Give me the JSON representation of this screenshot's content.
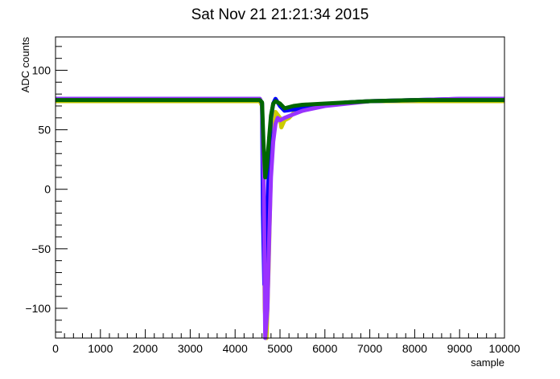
{
  "chart_data": {
    "type": "line",
    "title": "Sat Nov 21 21:21:34 2015",
    "xlabel": "sample",
    "ylabel": "ADC counts",
    "xlim": [
      0,
      10000
    ],
    "ylim": [
      -125,
      128
    ],
    "xticks": [
      0,
      1000,
      2000,
      3000,
      4000,
      5000,
      6000,
      7000,
      8000,
      9000,
      10000
    ],
    "yticks": [
      -100,
      -50,
      0,
      50,
      100
    ],
    "grid": false,
    "legend": "none",
    "series": [
      {
        "color": "#cccc00",
        "x": [
          0,
          4550,
          4600,
          4630,
          4660,
          4700,
          4750,
          4800,
          4850,
          4900,
          5000,
          5030,
          5100,
          5200,
          5300,
          5500,
          5700,
          6000,
          6500,
          7000,
          8000,
          9000,
          10000
        ],
        "y": [
          74,
          74,
          70,
          20,
          -100,
          -125,
          -60,
          20,
          55,
          65,
          60,
          52,
          58,
          60,
          64,
          66,
          68,
          71,
          73,
          74,
          74,
          74,
          74
        ]
      },
      {
        "color": "#0000ff",
        "x": [
          0,
          4550,
          4600,
          4620,
          4650,
          4680,
          4720,
          4760,
          4800,
          4850,
          4900,
          5000,
          5100,
          5300,
          5500,
          6000,
          6500,
          7000,
          8000,
          9000,
          10000
        ],
        "y": [
          76,
          76,
          72,
          -20,
          -80,
          -60,
          -20,
          30,
          60,
          72,
          76,
          70,
          66,
          67,
          68,
          71,
          73,
          74,
          75,
          76,
          76
        ]
      },
      {
        "color": "#9933ff",
        "x": [
          0,
          4550,
          4600,
          4640,
          4670,
          4720,
          4760,
          4800,
          4850,
          4900,
          4950,
          5000,
          5100,
          5300,
          5500,
          6000,
          6500,
          7000,
          8000,
          9000,
          10000
        ],
        "y": [
          76,
          76,
          72,
          0,
          -125,
          -100,
          -40,
          10,
          40,
          55,
          60,
          58,
          60,
          63,
          66,
          70,
          72,
          74,
          75,
          76,
          76
        ]
      },
      {
        "color": "#006600",
        "x": [
          0,
          4550,
          4600,
          4630,
          4670,
          4710,
          4750,
          4800,
          4850,
          4900,
          5000,
          5100,
          5300,
          5500,
          6000,
          6500,
          7000,
          8000,
          9000,
          10000
        ],
        "y": [
          75,
          75,
          73,
          40,
          10,
          20,
          40,
          62,
          72,
          74,
          72,
          68,
          70,
          71,
          72,
          73,
          74,
          75,
          75,
          75
        ]
      }
    ]
  }
}
